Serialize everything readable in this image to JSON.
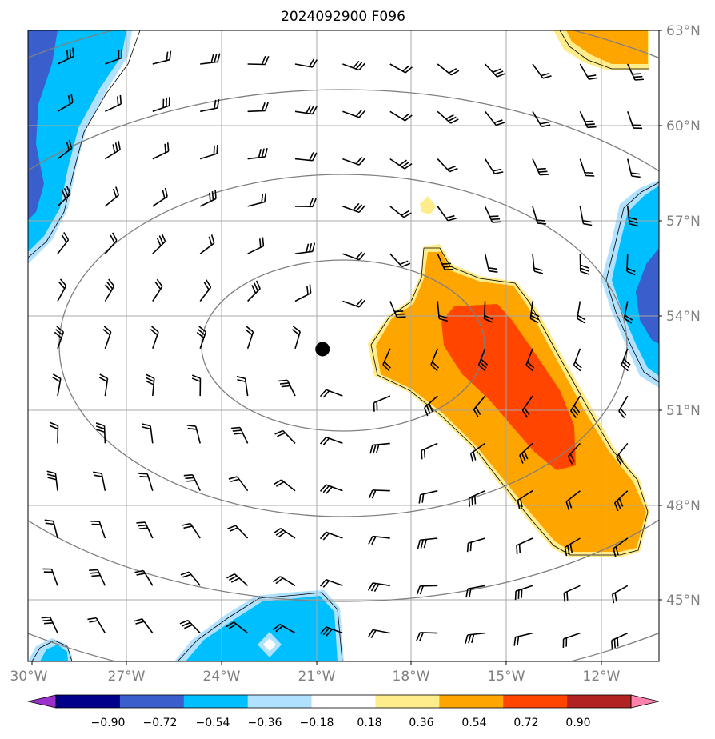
{
  "chart_data": {
    "type": "contour-map",
    "title": "2024092900 F096",
    "x_ticks": [
      "30°W",
      "27°W",
      "24°W",
      "21°W",
      "18°W",
      "15°W",
      "12°W"
    ],
    "y_ticks": [
      "63°N",
      "60°N",
      "57°N",
      "54°N",
      "51°N",
      "48°N",
      "45°N"
    ],
    "lon_range": [
      -30,
      -10.5
    ],
    "lat_range": [
      43,
      63
    ],
    "grid": true,
    "center_marker": {
      "lon": -20.9,
      "lat": 52.9
    },
    "colorbar": {
      "ticks": [
        "−0.90",
        "−0.72",
        "−0.54",
        "−0.36",
        "−0.18",
        "0.18",
        "0.36",
        "0.54",
        "0.72",
        "0.90"
      ],
      "colors": [
        "#9932CC",
        "#00008B",
        "#3A5FCD",
        "#00BFFF",
        "#B0E2FF",
        "#FFFFFF",
        "#FFEC8B",
        "#FFA500",
        "#FF4500",
        "#B22222",
        "#FF82AB"
      ],
      "extend": "both"
    }
  }
}
